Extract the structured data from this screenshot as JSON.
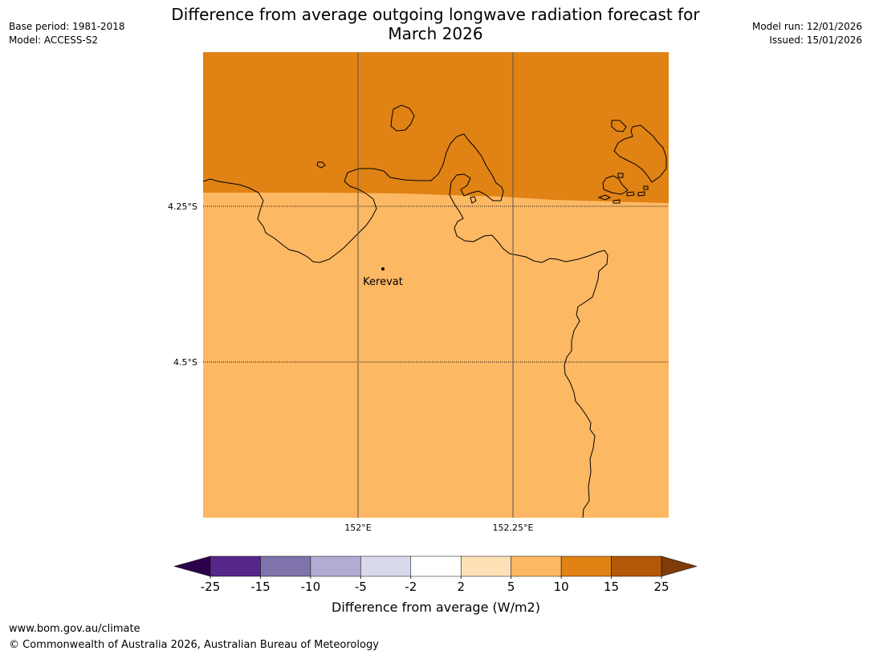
{
  "meta_left": {
    "base_period": "Base period: 1981-2018",
    "model": "Model: ACCESS-S2"
  },
  "meta_right": {
    "model_run": "Model run: 12/01/2026",
    "issued": "Issued: 15/01/2026"
  },
  "title": {
    "line1": "Difference from average outgoing longwave radiation forecast for",
    "line2": "March 2026"
  },
  "map": {
    "lat_labels": [
      "4.25°S",
      "4.5°S"
    ],
    "lon_labels": [
      "152°E",
      "152.25°E"
    ],
    "place": {
      "name": "Kerevat",
      "symbol": "dot"
    },
    "region_colors": {
      "upper": "#e08214",
      "lower": "#fdb863"
    },
    "coastline_color": "#000000"
  },
  "colorbar": {
    "ticks": [
      "-25",
      "-15",
      "-10",
      "-5",
      "-2",
      "2",
      "5",
      "10",
      "15",
      "25"
    ],
    "colors": [
      "#542788",
      "#8073ac",
      "#b2abd2",
      "#d8daeb",
      "#ffffff",
      "#fee0b6",
      "#fdb863",
      "#e08214",
      "#b35806"
    ],
    "under_color": "#2d004b",
    "over_color": "#7f3b08",
    "label": "Difference from average (W/m2)"
  },
  "footer": {
    "site": "www.bom.gov.au/climate",
    "copyright": "© Commonwealth of Australia 2026, Australian Bureau of Meteorology"
  }
}
